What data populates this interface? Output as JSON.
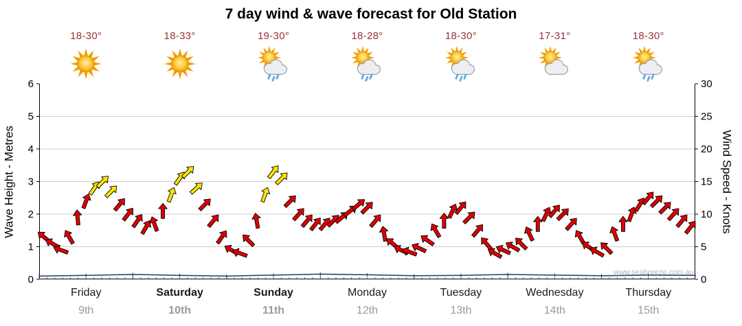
{
  "watermark": "www.seabreeze.com.au",
  "colors": {
    "temp_text": "#993333",
    "arrow_red": "#e00000",
    "arrow_yellow": "#ffe400",
    "arrow_outline": "#000000",
    "grid": "#cccccc",
    "axis": "#000000",
    "wave_line": "#1f3a6e",
    "minor_tick": "#4a62c8",
    "day_boundary_tick": "#444444",
    "date_text": "#9a9a9a",
    "rain_drop": "#5aa7de"
  },
  "chart_data": {
    "type": "line",
    "title": "7 day wind & wave forecast for Old Station",
    "left_axis": {
      "label": "Wave Height - Metres",
      "min": 0,
      "max": 6,
      "tick_step": 1,
      "ticks": [
        "0",
        "1",
        "2",
        "3",
        "4",
        "5",
        "6"
      ]
    },
    "right_axis": {
      "label": "Wind Speed - Knots",
      "min": 0,
      "max": 30,
      "tick_step": 5,
      "ticks": [
        "0",
        "5",
        "10",
        "15",
        "20",
        "25",
        "30"
      ]
    },
    "x_range_days": 7,
    "grid": true,
    "days": [
      {
        "name": "Friday",
        "date": "9th",
        "temp": "18-30°",
        "icon": "sunny",
        "weekend": false
      },
      {
        "name": "Saturday",
        "date": "10th",
        "temp": "18-33°",
        "icon": "sunny",
        "weekend": true
      },
      {
        "name": "Sunday",
        "date": "11th",
        "temp": "19-30°",
        "icon": "sun-showers",
        "weekend": true
      },
      {
        "name": "Monday",
        "date": "12th",
        "temp": "18-28°",
        "icon": "sun-showers",
        "weekend": false
      },
      {
        "name": "Tuesday",
        "date": "13th",
        "temp": "18-30°",
        "icon": "sun-showers",
        "weekend": false
      },
      {
        "name": "Wednesday",
        "date": "14th",
        "temp": "17-31°",
        "icon": "partly-cloudy",
        "weekend": false
      },
      {
        "name": "Thursday",
        "date": "15th",
        "temp": "18-30°",
        "icon": "sun-showers",
        "weekend": false
      }
    ],
    "wind_series": {
      "name": "Wind speed in knots; arrows show wind direction",
      "point_format": [
        "x_days",
        "knots",
        "direction_deg",
        "band"
      ],
      "bands": {
        "r": "red",
        "y": "yellow"
      },
      "points": [
        [
          0.05,
          6.5,
          310,
          "r"
        ],
        [
          0.14,
          5.5,
          300,
          "r"
        ],
        [
          0.23,
          4.5,
          290,
          "r"
        ],
        [
          0.32,
          6.5,
          330,
          "r"
        ],
        [
          0.41,
          9.5,
          355,
          "r"
        ],
        [
          0.5,
          12.0,
          20,
          "r"
        ],
        [
          0.59,
          14.0,
          35,
          "y"
        ],
        [
          0.68,
          15.0,
          45,
          "y"
        ],
        [
          0.77,
          13.5,
          45,
          "y"
        ],
        [
          0.86,
          11.5,
          40,
          "r"
        ],
        [
          0.95,
          10.0,
          38,
          "r"
        ],
        [
          1.05,
          9.0,
          35,
          "r"
        ],
        [
          1.14,
          8.0,
          30,
          "r"
        ],
        [
          1.23,
          8.5,
          340,
          "r"
        ],
        [
          1.32,
          10.5,
          0,
          "r"
        ],
        [
          1.41,
          13.0,
          20,
          "y"
        ],
        [
          1.5,
          15.5,
          35,
          "y"
        ],
        [
          1.59,
          16.5,
          45,
          "y"
        ],
        [
          1.68,
          14.0,
          48,
          "y"
        ],
        [
          1.77,
          11.5,
          45,
          "r"
        ],
        [
          1.86,
          9.0,
          40,
          "r"
        ],
        [
          1.95,
          6.5,
          35,
          "r"
        ],
        [
          2.05,
          4.5,
          300,
          "r"
        ],
        [
          2.14,
          4.0,
          290,
          "r"
        ],
        [
          2.23,
          6.0,
          315,
          "r"
        ],
        [
          2.32,
          9.0,
          350,
          "r"
        ],
        [
          2.41,
          13.0,
          20,
          "y"
        ],
        [
          2.5,
          16.5,
          38,
          "y"
        ],
        [
          2.59,
          15.5,
          45,
          "y"
        ],
        [
          2.68,
          12.0,
          45,
          "r"
        ],
        [
          2.77,
          10.0,
          42,
          "r"
        ],
        [
          2.86,
          9.0,
          40,
          "r"
        ],
        [
          2.95,
          8.5,
          38,
          "r"
        ],
        [
          3.05,
          8.5,
          40,
          "r"
        ],
        [
          3.14,
          9.0,
          45,
          "r"
        ],
        [
          3.23,
          9.5,
          50,
          "r"
        ],
        [
          3.32,
          10.5,
          52,
          "r"
        ],
        [
          3.41,
          11.5,
          50,
          "r"
        ],
        [
          3.5,
          11.0,
          45,
          "r"
        ],
        [
          3.59,
          9.0,
          40,
          "r"
        ],
        [
          3.68,
          7.0,
          350,
          "r"
        ],
        [
          3.77,
          5.5,
          310,
          "r"
        ],
        [
          3.86,
          4.5,
          295,
          "r"
        ],
        [
          3.95,
          4.2,
          290,
          "r"
        ],
        [
          4.05,
          4.8,
          295,
          "r"
        ],
        [
          4.14,
          6.0,
          305,
          "r"
        ],
        [
          4.23,
          7.5,
          330,
          "r"
        ],
        [
          4.32,
          9.0,
          0,
          "r"
        ],
        [
          4.41,
          10.5,
          25,
          "r"
        ],
        [
          4.5,
          11.0,
          40,
          "r"
        ],
        [
          4.59,
          9.5,
          45,
          "r"
        ],
        [
          4.68,
          7.5,
          40,
          "r"
        ],
        [
          4.77,
          5.5,
          320,
          "r"
        ],
        [
          4.86,
          4.0,
          300,
          "r"
        ],
        [
          4.95,
          4.5,
          295,
          "r"
        ],
        [
          5.05,
          5.0,
          300,
          "r"
        ],
        [
          5.14,
          5.5,
          315,
          "r"
        ],
        [
          5.23,
          7.0,
          335,
          "r"
        ],
        [
          5.32,
          8.5,
          0,
          "r"
        ],
        [
          5.41,
          10.0,
          25,
          "r"
        ],
        [
          5.5,
          10.5,
          40,
          "r"
        ],
        [
          5.59,
          10.0,
          45,
          "r"
        ],
        [
          5.68,
          8.5,
          42,
          "r"
        ],
        [
          5.77,
          6.5,
          330,
          "r"
        ],
        [
          5.86,
          5.0,
          305,
          "r"
        ],
        [
          5.95,
          4.2,
          300,
          "r"
        ],
        [
          6.05,
          4.8,
          315,
          "r"
        ],
        [
          6.14,
          7.0,
          340,
          "r"
        ],
        [
          6.23,
          8.5,
          0,
          "r"
        ],
        [
          6.32,
          10.0,
          20,
          "r"
        ],
        [
          6.41,
          11.5,
          32,
          "r"
        ],
        [
          6.5,
          12.5,
          40,
          "r"
        ],
        [
          6.59,
          12.0,
          45,
          "r"
        ],
        [
          6.68,
          11.0,
          45,
          "r"
        ],
        [
          6.77,
          10.0,
          42,
          "r"
        ],
        [
          6.86,
          9.0,
          40,
          "r"
        ],
        [
          6.95,
          8.0,
          38,
          "r"
        ]
      ]
    },
    "wave_series": {
      "name": "Wave height in metres",
      "point_format": [
        "x_days",
        "metres"
      ],
      "points": [
        [
          0,
          0.1
        ],
        [
          0.5,
          0.12
        ],
        [
          1,
          0.15
        ],
        [
          1.5,
          0.12
        ],
        [
          2,
          0.1
        ],
        [
          2.5,
          0.13
        ],
        [
          3,
          0.16
        ],
        [
          3.5,
          0.14
        ],
        [
          4,
          0.11
        ],
        [
          4.5,
          0.12
        ],
        [
          5,
          0.15
        ],
        [
          5.5,
          0.13
        ],
        [
          6,
          0.11
        ],
        [
          6.5,
          0.13
        ],
        [
          7,
          0.12
        ]
      ]
    }
  }
}
